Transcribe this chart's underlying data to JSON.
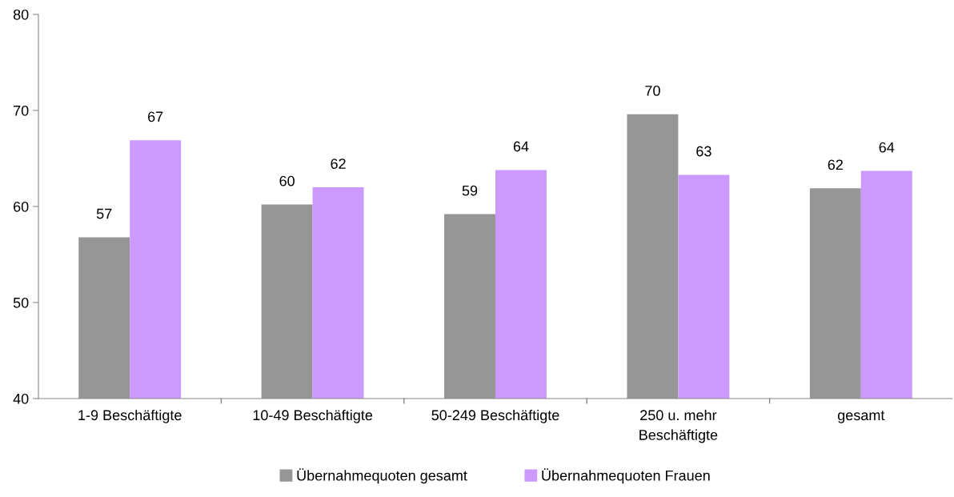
{
  "chart_data": {
    "type": "bar",
    "categories": [
      "1-9 Beschäftigte",
      "10-49 Beschäftigte",
      "50-249 Beschäftigte",
      "250 u. mehr\nBeschäftigte",
      "gesamt"
    ],
    "series": [
      {
        "name": "Übernahmequoten gesamt",
        "color": "#969696",
        "values": [
          56.8,
          60.2,
          59.2,
          69.6,
          61.9
        ],
        "value_labels": [
          "57",
          "60",
          "59",
          "70",
          "62"
        ]
      },
      {
        "name": "Übernahmequoten Frauen",
        "color": "#cc99ff",
        "values": [
          66.9,
          62.0,
          63.8,
          63.3,
          63.7
        ],
        "value_labels": [
          "67",
          "62",
          "64",
          "63",
          "64"
        ]
      }
    ],
    "ylim": [
      40,
      80
    ],
    "yticks": [
      40,
      50,
      60,
      70,
      80
    ],
    "grid": false,
    "legend": "bottom"
  }
}
